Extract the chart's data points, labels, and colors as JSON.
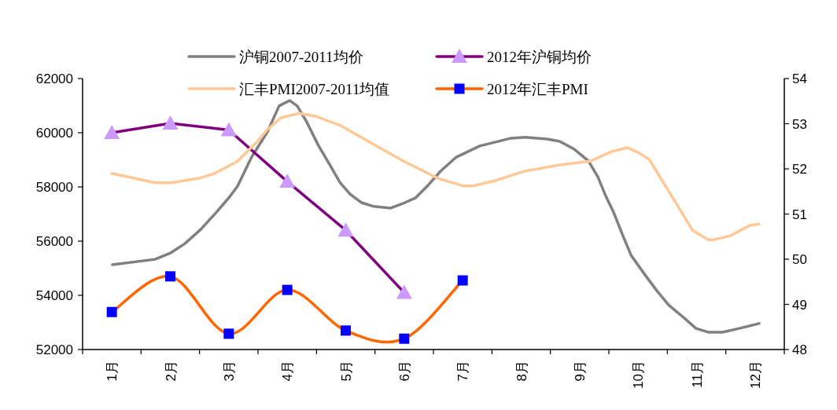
{
  "chart_data": {
    "type": "line",
    "legend": "top",
    "grid": false,
    "xlim": [
      0.5,
      12.5
    ],
    "xticks": [
      {
        "value": 1,
        "label": "1月"
      },
      {
        "value": 2,
        "label": "2月"
      },
      {
        "value": 3,
        "label": "3月"
      },
      {
        "value": 4,
        "label": "4月"
      },
      {
        "value": 5,
        "label": "5月"
      },
      {
        "value": 6,
        "label": "6月"
      },
      {
        "value": 7,
        "label": "7月"
      },
      {
        "value": 8,
        "label": "8月"
      },
      {
        "value": 9,
        "label": "9月"
      },
      {
        "value": 10,
        "label": "10月"
      },
      {
        "value": 11,
        "label": "11月"
      },
      {
        "value": 12,
        "label": "12月"
      }
    ],
    "ylim": [
      52000,
      62000
    ],
    "yticks": [
      52000,
      54000,
      56000,
      58000,
      60000,
      62000
    ],
    "y2lim": [
      48,
      54
    ],
    "y2ticks": [
      48,
      49,
      50,
      51,
      52,
      53,
      54
    ],
    "series": [
      {
        "name": "沪铜2007-2011均价",
        "color": "#808080",
        "marker": "none",
        "x": [
          1.01,
          1.74,
          2.01,
          2.25,
          2.52,
          2.79,
          3.02,
          3.15,
          3.39,
          3.66,
          3.86,
          4.04,
          4.17,
          4.33,
          4.53,
          4.73,
          4.9,
          5.07,
          5.27,
          5.48,
          5.77,
          6.01,
          6.19,
          6.42,
          6.62,
          6.89,
          7.29,
          7.83,
          8.07,
          8.44,
          8.66,
          8.91,
          9.15,
          9.31,
          9.45,
          9.58,
          9.74,
          9.88,
          10.12,
          10.32,
          10.52,
          10.79,
          10.99,
          11.2,
          11.44,
          11.73,
          12.07
        ],
        "values": [
          55130,
          55330,
          55570,
          55910,
          56430,
          57070,
          57650,
          58030,
          59100,
          60030,
          60990,
          61190,
          60990,
          60410,
          59540,
          58810,
          58170,
          57740,
          57420,
          57280,
          57220,
          57420,
          57590,
          58090,
          58580,
          59100,
          59510,
          59800,
          59830,
          59770,
          59680,
          59390,
          58960,
          58380,
          57650,
          57070,
          56200,
          55480,
          54750,
          54170,
          53650,
          53160,
          52780,
          52640,
          52640,
          52780,
          52960
        ]
      },
      {
        "name": "2012年沪铜均价",
        "color": "#7f007f",
        "marker": "triangle",
        "colors": [
          "#cc99ff",
          "#cc99ff",
          "#cc99ff",
          "#cc99ff",
          "#cc99ff",
          "#cc99ff"
        ],
        "x": [
          1,
          2,
          3,
          4,
          5,
          6
        ],
        "values": [
          60000,
          60350,
          60100,
          58200,
          56400,
          54100
        ]
      },
      {
        "name": "汇丰PMI2007-2011均值",
        "color": "#ffc896",
        "marker": "none",
        "axis": "y2",
        "x": [
          1.0,
          1.75,
          2.01,
          2.49,
          2.76,
          3.15,
          3.49,
          3.66,
          3.89,
          4.2,
          4.47,
          4.91,
          5.45,
          5.99,
          6.58,
          7.02,
          7.16,
          7.56,
          8.06,
          8.68,
          9.18,
          9.54,
          9.81,
          10.02,
          10.19,
          10.43,
          10.66,
          10.93,
          11.2,
          11.29,
          11.58,
          11.91,
          12.07
        ],
        "values": [
          51.9,
          51.69,
          51.69,
          51.79,
          51.9,
          52.17,
          52.61,
          52.87,
          53.13,
          53.23,
          53.17,
          52.96,
          52.56,
          52.17,
          51.79,
          51.62,
          51.62,
          51.74,
          51.95,
          52.09,
          52.17,
          52.38,
          52.47,
          52.35,
          52.21,
          51.7,
          51.22,
          50.64,
          50.43,
          50.43,
          50.52,
          50.75,
          50.78
        ]
      },
      {
        "name": "2012年汇丰PMI",
        "color": "#ff6600",
        "marker": "square",
        "colors": [
          "#0000ff",
          "#0000ff",
          "#0000ff",
          "#0000ff",
          "#0000ff",
          "#0000ff",
          "#0000ff"
        ],
        "axis": "y2",
        "x": [
          1,
          2,
          3,
          4,
          5,
          6,
          7
        ],
        "values": [
          48.83,
          49.62,
          48.35,
          49.32,
          48.42,
          48.24,
          49.53
        ]
      }
    ]
  }
}
